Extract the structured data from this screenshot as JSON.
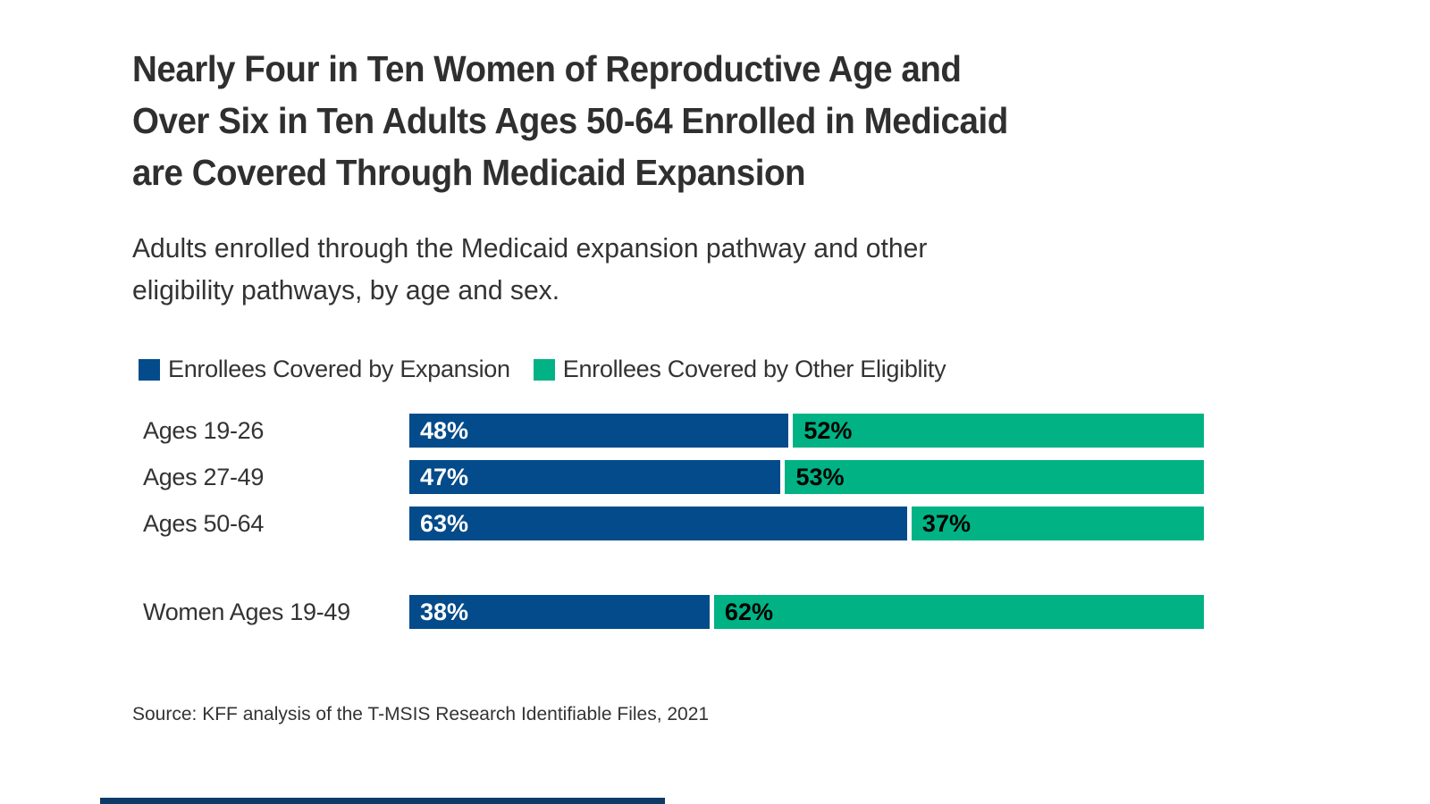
{
  "title": "Nearly Four in Ten Women of Reproductive Age and\nOver Six in Ten Adults Ages 50-64 Enrolled in Medicaid\nare Covered Through Medicaid Expansion",
  "subtitle": "Adults enrolled through the Medicaid expansion pathway and other\neligibility pathways, by age and sex.",
  "source": "Source: KFF analysis of the T-MSIS Research Identifiable Files, 2021",
  "legend": [
    {
      "label": "Enrollees Covered by Expansion",
      "color": "#034b8a"
    },
    {
      "label": "Enrollees Covered by Other Eligiblity",
      "color": "#00b284"
    }
  ],
  "colors": {
    "expansion_blue": "#034b8a",
    "other_green": "#00b284",
    "text": "#333333",
    "value_on_blue": "#ffffff",
    "value_on_green": "#000000",
    "footer_stripe": "#0d3a66",
    "background": "#ffffff"
  },
  "chart_data": {
    "type": "bar",
    "orientation": "horizontal",
    "stacked": true,
    "grid": false,
    "legend_position": "top",
    "xlim": [
      0,
      100
    ],
    "value_suffix": "%",
    "categories": [
      "Ages 19-26",
      "Ages 27-49",
      "Ages 50-64",
      "Women Ages 19-49"
    ],
    "series": [
      {
        "name": "Enrollees Covered by Expansion",
        "color": "#034b8a",
        "values": [
          48,
          47,
          63,
          38
        ]
      },
      {
        "name": "Enrollees Covered by Other Eligiblity",
        "color": "#00b284",
        "values": [
          52,
          53,
          37,
          62
        ]
      }
    ],
    "separate_last_category": true
  }
}
